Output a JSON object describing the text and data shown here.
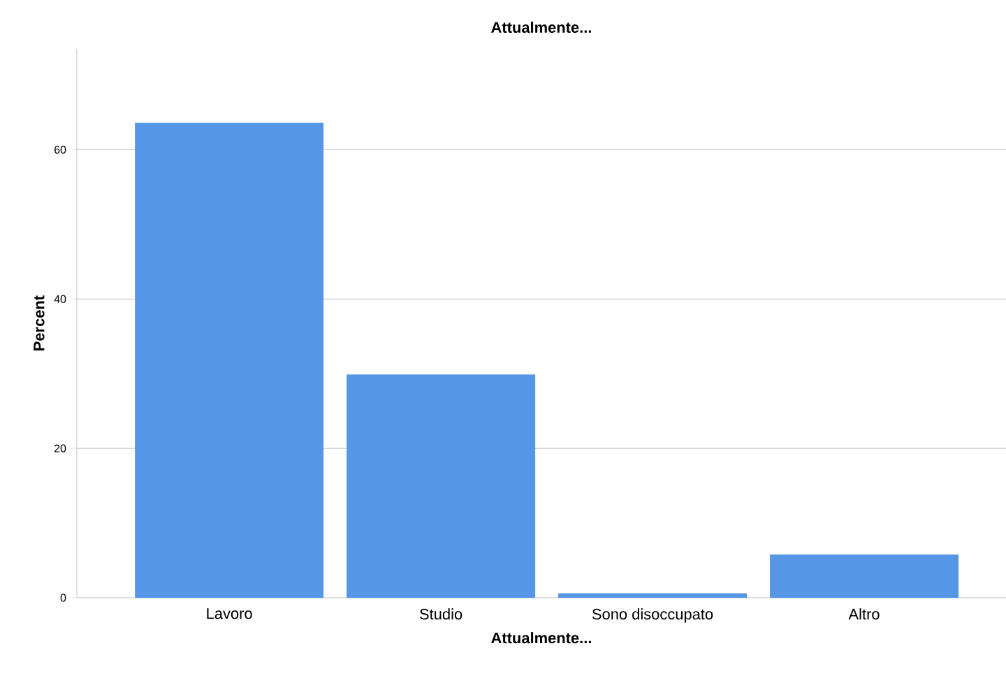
{
  "chart_data": {
    "type": "bar",
    "title": "Attualmente...",
    "xlabel": "Attualmente...",
    "ylabel": "Percent",
    "categories": [
      "Lavoro",
      "Studio",
      "Sono disoccupato",
      "Altro"
    ],
    "values": [
      63.6,
      29.9,
      0.6,
      5.8
    ],
    "color": "#5596e6",
    "ylim": [
      0,
      73.5
    ],
    "yticks": [
      0,
      20,
      40,
      60
    ],
    "grid": "y"
  }
}
